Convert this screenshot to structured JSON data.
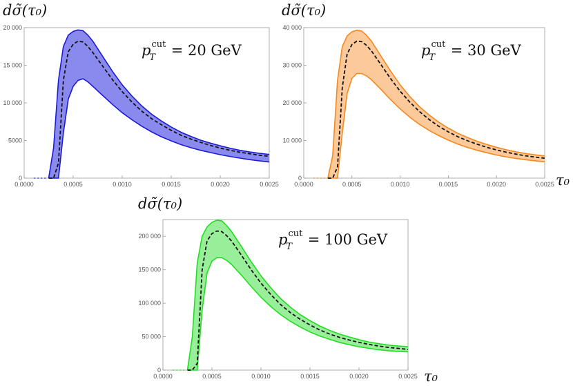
{
  "chart_data": [
    {
      "type": "area",
      "ylabel": "dσ̃(τ₀)",
      "xlabel": "",
      "annotation": {
        "p": "p",
        "sub": "T",
        "sup": "cut",
        "rest": " = 20 GeV"
      },
      "xlim": [
        0,
        0.0025
      ],
      "ylim": [
        0,
        20000
      ],
      "xticks": [
        "0.0000",
        "0.0005",
        "0.0010",
        "0.0015",
        "0.0020",
        "0.0025"
      ],
      "yticks": [
        "0",
        "5000",
        "10 000",
        "15 000",
        "20 000"
      ],
      "ytick_values": [
        0,
        5000,
        10000,
        15000,
        20000
      ],
      "colors": {
        "line": "#1a1ad6",
        "fill": "#8a8aee"
      },
      "x": [
        0.00025,
        0.0003,
        0.00035,
        0.0004,
        0.00045,
        0.0005,
        0.00055,
        0.0006,
        0.00065,
        0.0007,
        0.0008,
        0.0009,
        0.001,
        0.0011,
        0.0012,
        0.0013,
        0.0014,
        0.0015,
        0.0016,
        0.0017,
        0.0018,
        0.0019,
        0.002,
        0.0021,
        0.0022,
        0.0023,
        0.0024,
        0.0025
      ],
      "series": [
        {
          "name": "upper",
          "values": [
            0,
            4000,
            13000,
            17500,
            19000,
            19500,
            19700,
            19600,
            19000,
            18200,
            16200,
            14200,
            12400,
            10900,
            9600,
            8500,
            7600,
            6800,
            6100,
            5550,
            5050,
            4650,
            4300,
            3980,
            3700,
            3480,
            3300,
            3150
          ]
        },
        {
          "name": "central",
          "values": [
            0,
            0,
            2000,
            13000,
            16800,
            17800,
            18200,
            18100,
            17500,
            16700,
            14900,
            13100,
            11500,
            10100,
            8900,
            7900,
            7100,
            6350,
            5700,
            5200,
            4750,
            4350,
            4000,
            3700,
            3450,
            3250,
            3050,
            2900
          ]
        },
        {
          "name": "lower",
          "values": [
            0,
            0,
            0,
            6000,
            10500,
            12200,
            13000,
            13200,
            12800,
            12200,
            11000,
            9800,
            8700,
            7750,
            6900,
            6150,
            5500,
            4950,
            4450,
            4050,
            3700,
            3400,
            3120,
            2880,
            2660,
            2460,
            2290,
            2150
          ]
        }
      ]
    },
    {
      "type": "area",
      "ylabel": "dσ̃(τ₀)",
      "xlabel": "τ₀",
      "annotation": {
        "p": "p",
        "sub": "T",
        "sup": "cut",
        "rest": " = 30 GeV"
      },
      "xlim": [
        0,
        0.0025
      ],
      "ylim": [
        0,
        40000
      ],
      "xticks": [
        "0.0000",
        "0.0005",
        "0.0010",
        "0.0015",
        "0.0020",
        "0.0025"
      ],
      "yticks": [
        "0",
        "10 000",
        "20 000",
        "30 000",
        "40 000"
      ],
      "ytick_values": [
        0,
        10000,
        20000,
        30000,
        40000
      ],
      "colors": {
        "line": "#f5891f",
        "fill": "#fbc99a"
      },
      "x": [
        0.00025,
        0.0003,
        0.00035,
        0.0004,
        0.00045,
        0.0005,
        0.00055,
        0.0006,
        0.00065,
        0.0007,
        0.0008,
        0.0009,
        0.001,
        0.0011,
        0.0012,
        0.0013,
        0.0014,
        0.0015,
        0.0016,
        0.0017,
        0.0018,
        0.0019,
        0.002,
        0.0021,
        0.0022,
        0.0023,
        0.0024,
        0.0025
      ],
      "series": [
        {
          "name": "upper",
          "values": [
            0,
            6000,
            26000,
            35000,
            37800,
            38900,
            39300,
            39100,
            38000,
            36500,
            32500,
            28500,
            24800,
            21700,
            19000,
            16800,
            14900,
            13300,
            11900,
            10800,
            9800,
            8950,
            8200,
            7550,
            7000,
            6550,
            6200,
            5900
          ]
        },
        {
          "name": "central",
          "values": [
            0,
            0,
            3000,
            24000,
            33000,
            35500,
            36400,
            36300,
            35300,
            33900,
            30200,
            26500,
            23100,
            20200,
            17700,
            15600,
            13800,
            12300,
            11000,
            9950,
            9000,
            8200,
            7500,
            6900,
            6400,
            5950,
            5600,
            5300
          ]
        },
        {
          "name": "lower",
          "values": [
            0,
            0,
            0,
            12000,
            22500,
            26500,
            27800,
            27800,
            27200,
            26200,
            23600,
            20900,
            18400,
            16200,
            14300,
            12700,
            11300,
            10100,
            9050,
            8150,
            7400,
            6750,
            6150,
            5650,
            5250,
            4900,
            4600,
            4350
          ]
        }
      ]
    },
    {
      "type": "area",
      "ylabel": "dσ̃(τ₀)",
      "xlabel": "τ₀",
      "annotation": {
        "p": "p",
        "sub": "T",
        "sup": "cut",
        "rest": " = 100 GeV"
      },
      "xlim": [
        0,
        0.0025
      ],
      "ylim": [
        0,
        225000
      ],
      "xticks": [
        "0.0000",
        "0.0005",
        "0.0010",
        "0.0015",
        "0.0020",
        "0.0025"
      ],
      "yticks": [
        "0",
        "50 000",
        "100 000",
        "150 000",
        "200 000"
      ],
      "ytick_values": [
        0,
        50000,
        100000,
        150000,
        200000
      ],
      "colors": {
        "line": "#22dd22",
        "fill": "#99ee99"
      },
      "x": [
        0.00025,
        0.0003,
        0.00035,
        0.0004,
        0.00045,
        0.0005,
        0.00055,
        0.0006,
        0.00065,
        0.0007,
        0.0008,
        0.0009,
        0.001,
        0.0011,
        0.0012,
        0.0013,
        0.0014,
        0.0015,
        0.0016,
        0.0017,
        0.0018,
        0.0019,
        0.002,
        0.0021,
        0.0022,
        0.0023,
        0.0024,
        0.0025
      ],
      "series": [
        {
          "name": "upper",
          "values": [
            0,
            50000,
            160000,
            200000,
            214000,
            221000,
            224000,
            223000,
            216000,
            207000,
            185000,
            162000,
            141000,
            123000,
            107000,
            94000,
            83000,
            74000,
            66000,
            59500,
            54000,
            49500,
            45500,
            42000,
            39500,
            37500,
            36000,
            35000
          ]
        },
        {
          "name": "central",
          "values": [
            0,
            0,
            10000,
            150000,
            193000,
            204000,
            208000,
            207000,
            201000,
            193000,
            172000,
            150000,
            130000,
            113000,
            98000,
            86000,
            76000,
            67500,
            60000,
            54000,
            49000,
            45000,
            41500,
            38500,
            36000,
            34000,
            32500,
            31000
          ]
        },
        {
          "name": "lower",
          "values": [
            0,
            0,
            0,
            90000,
            145000,
            163000,
            168000,
            168000,
            164000,
            158000,
            142000,
            125000,
            109000,
            95000,
            83000,
            73000,
            64500,
            57000,
            51000,
            46000,
            41500,
            38000,
            35000,
            32500,
            30500,
            29000,
            28000,
            27500
          ]
        }
      ]
    }
  ]
}
